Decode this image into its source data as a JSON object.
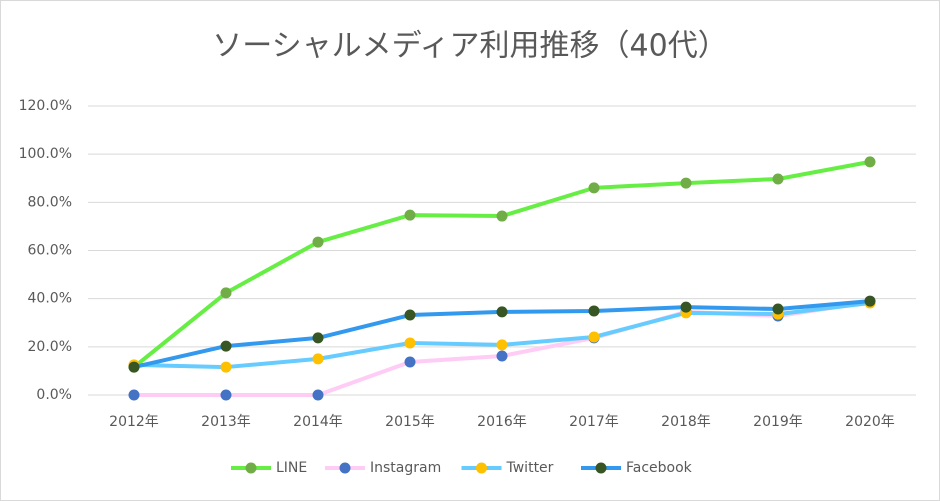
{
  "chart_data": {
    "type": "line",
    "title": "ソーシャルメディア利用推移（40代）",
    "categories": [
      "2012年",
      "2013年",
      "2014年",
      "2015年",
      "2016年",
      "2017年",
      "2018年",
      "2019年",
      "2020年"
    ],
    "ylim": [
      0,
      120
    ],
    "yticks": [
      {
        "value": 0,
        "label": "0.0%"
      },
      {
        "value": 20,
        "label": "20.0%"
      },
      {
        "value": 40,
        "label": "40.0%"
      },
      {
        "value": 60,
        "label": "60.0%"
      },
      {
        "value": 80,
        "label": "80.0%"
      },
      {
        "value": 100,
        "label": "100.0%"
      },
      {
        "value": 120,
        "label": "120.0%"
      }
    ],
    "grid": true,
    "legend": "bottom",
    "series": [
      {
        "name": "LINE",
        "color": "#66ee44",
        "marker_color": "#70ad47",
        "values": [
          11.6,
          42.4,
          63.5,
          74.7,
          74.3,
          86,
          88,
          89.7,
          96.8
        ]
      },
      {
        "name": "Instagram",
        "color": "#ffccf5",
        "marker_color": "#4472c4",
        "values": [
          0,
          0,
          0,
          13.7,
          16.2,
          23.7,
          34.5,
          32.8,
          38.6
        ]
      },
      {
        "name": "Twitter",
        "color": "#66ccff",
        "marker_color": "#ffc000",
        "values": [
          12.5,
          11.6,
          15,
          21.6,
          20.8,
          24.1,
          34.1,
          33.6,
          38.2
        ]
      },
      {
        "name": "Facebook",
        "color": "#3399ee",
        "marker_color": "#375623",
        "values": [
          11.6,
          20.3,
          23.7,
          33.2,
          34.5,
          34.9,
          36.5,
          35.7,
          39
        ]
      }
    ]
  }
}
